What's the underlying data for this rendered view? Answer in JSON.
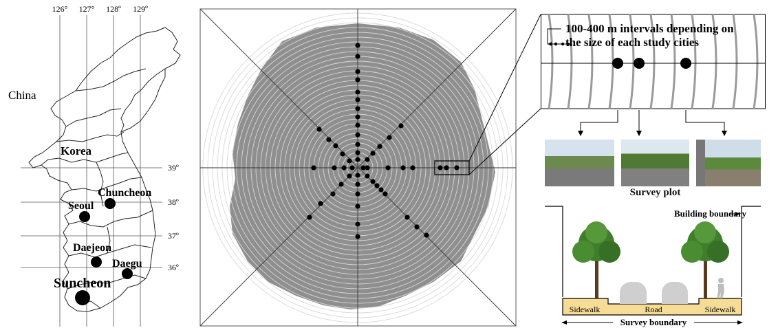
{
  "map_panel": {
    "longitudes": [
      "126°",
      "127°",
      "128º",
      "129º"
    ],
    "latitudes": [
      "39º",
      "38º",
      "37º",
      "36º"
    ],
    "country_labels": [
      "China",
      "Korea"
    ],
    "cities": [
      {
        "name": "Chuncheon",
        "marker": "small"
      },
      {
        "name": "Seoul",
        "marker": "small"
      },
      {
        "name": "Daejeon",
        "marker": "small"
      },
      {
        "name": "Daegu",
        "marker": "small"
      },
      {
        "name": "Suncheon",
        "marker": "large"
      }
    ]
  },
  "sampling_panel": {
    "description_arms": 8,
    "inset": {
      "interval_label_line1": "100-400 m intervals depending on",
      "interval_label_line2": "the size of each study cities"
    },
    "survey_plot_label": "Survey plot"
  },
  "cross_section": {
    "building_boundary_label": "Building boundary",
    "sidewalk_left": "Sidewalk",
    "road": "Road",
    "sidewalk_right": "Sidewalk",
    "survey_boundary_label": "Survey boundary"
  },
  "colors": {
    "land_gray": "#8f8f8f",
    "ground_yellow": "#f6dc94",
    "tree_green": "#3f7f2b",
    "car_gray": "#cfcfcf"
  }
}
